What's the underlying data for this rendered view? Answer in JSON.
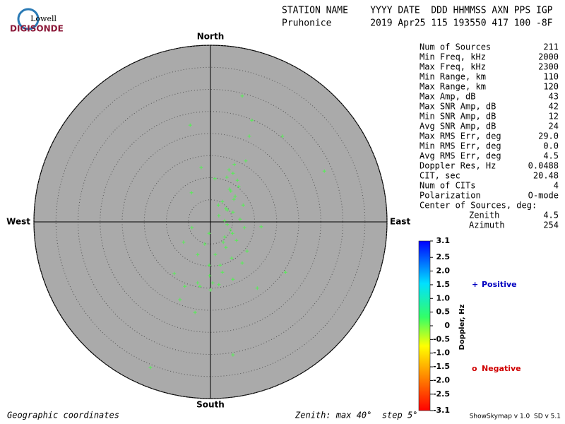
{
  "header": {
    "logo_top": "Lowell",
    "logo_bottom": "DIGISONDE",
    "line1": "STATION NAME    YYYY DATE  DDD HHMMSS AXN PPS IGP",
    "line2": "Pruhonice       2019 Apr25 115 193550 417 100 -8F"
  },
  "stats": {
    "rows": [
      [
        "Num of Sources",
        "211"
      ],
      [
        "Min Freq, kHz",
        "2000"
      ],
      [
        "Max Freq, kHz",
        "2300"
      ],
      [
        "Min Range, km",
        "110"
      ],
      [
        "Max Range, km",
        "120"
      ],
      [
        "Max Amp, dB",
        "43"
      ],
      [
        "Max SNR Amp, dB",
        "42"
      ],
      [
        "Min SNR Amp, dB",
        "12"
      ],
      [
        "Avg SNR Amp, dB",
        "24"
      ],
      [
        "Max RMS Err, deg",
        "29.0"
      ],
      [
        "Min RMS Err, deg",
        "0.0"
      ],
      [
        "Avg RMS Err, deg",
        "4.5"
      ],
      [
        "Doppler Res, Hz",
        "0.0488"
      ],
      [
        "CIT, sec",
        "20.48"
      ],
      [
        "Num of CITs",
        "4"
      ],
      [
        "Polarization",
        "O-mode"
      ]
    ],
    "center_title": "Center of Sources, deg:",
    "center_rows": [
      [
        "Zenith",
        "4.5"
      ],
      [
        "Azimuth",
        "254"
      ]
    ]
  },
  "colorbar": {
    "label": "Doppler, Hz",
    "lim": [
      -3.1,
      3.1
    ],
    "ticks": [
      3.1,
      2.5,
      {
        "value": 2,
        "label": "2.0"
      },
      1.5,
      {
        "value": 1,
        "label": "1.0"
      },
      0.5,
      0,
      -0.5,
      {
        "value": -1,
        "label": "-1.0"
      },
      -1.5,
      {
        "value": -2,
        "label": "-2.0"
      },
      -2.5,
      -3.1
    ]
  },
  "legend": [
    {
      "symbol": "+",
      "label": "Positive",
      "color": "#0000c0"
    },
    {
      "symbol": "o",
      "label": "Negative",
      "color": "#d00000"
    }
  ],
  "chart_data": {
    "type": "skymap",
    "north": "North",
    "south": "South",
    "east": "East",
    "west": "West",
    "xlim": [
      -40,
      40
    ],
    "ylim": [
      -40,
      40
    ],
    "zenith_rings": [
      5,
      10,
      15,
      20,
      25,
      30,
      35,
      40
    ],
    "color": "#55ee55",
    "x": [
      7.2,
      -4.6,
      9.4,
      8.8,
      16.3,
      25.8,
      -2.1,
      8.0,
      -4.3,
      1.0,
      5.4,
      5.1,
      3.7,
      6.4,
      4.6,
      5.6,
      2.7,
      7.4,
      3.5,
      5.1,
      1.9,
      6.7,
      3.8,
      11.5,
      -4.2,
      -0.3,
      3.2,
      5.9,
      -6.1,
      -1.3,
      3.5,
      8.3,
      1.1,
      4.8,
      -2.9,
      7.2,
      2.2,
      -0.3,
      2.7,
      -8.2,
      17.0,
      -0.2,
      5.1,
      -5.8,
      -2.9,
      0.0,
      10.6,
      -6.9,
      -3.5,
      5.1,
      -13.6,
      4.3,
      5.3,
      3.2,
      4.5,
      1.8,
      7.7,
      2.9,
      5.0,
      0.5,
      -2.4,
      1.9,
      3.8,
      6.1,
      4.2
    ],
    "y": [
      28.5,
      21.9,
      23.0,
      19.4,
      19.4,
      11.5,
      12.3,
      13.8,
      6.6,
      9.8,
      13.0,
      11.0,
      10.1,
      8.0,
      7.0,
      5.8,
      4.6,
      3.8,
      3.0,
      2.2,
      1.4,
      0.6,
      -0.6,
      -1.1,
      -1.3,
      -2.6,
      -3.4,
      -4.2,
      -4.6,
      -5.0,
      -5.8,
      -6.6,
      -7.4,
      -8.2,
      -7.4,
      -9.3,
      -9.8,
      -9.8,
      -11.4,
      -11.7,
      -11.4,
      -12.2,
      -13.0,
      -14.6,
      -13.8,
      -15.4,
      -15.0,
      -17.6,
      -20.5,
      -30.1,
      -33.0,
      7.4,
      5.1,
      0.3,
      -1.8,
      3.8,
      -1.3,
      -4.6,
      -2.6,
      -13.8,
      -14.6,
      -14.2,
      2.7,
      9.4,
      11.8
    ]
  },
  "footer": {
    "left": "Geographic coordinates",
    "middle": "Zenith: max 40°  step 5°",
    "right": "ShowSkymap v 1.0  SD v 5.1"
  }
}
